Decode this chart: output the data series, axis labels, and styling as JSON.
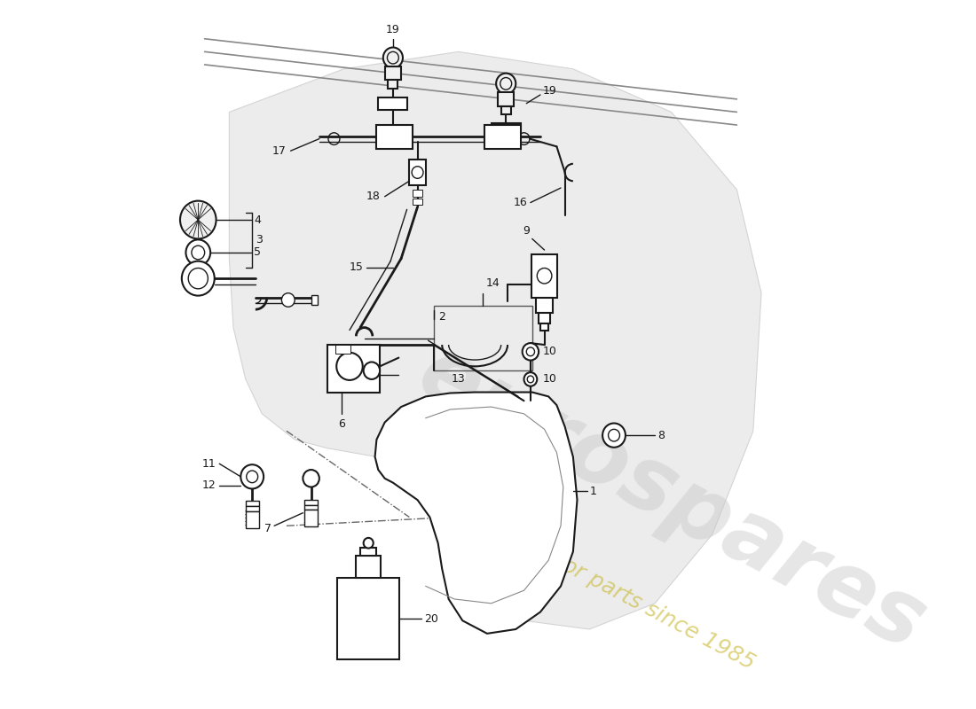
{
  "bg": "#ffffff",
  "lc": "#1a1a1a",
  "wm1": "eurospares",
  "wm2": "a passion for parts since 1985",
  "wm1_color": "#c8c8c8",
  "wm2_color": "#c8b830",
  "fig_w": 11.0,
  "fig_h": 8.0,
  "dpi": 100,
  "fender_color": "#e0e0e0",
  "hood_color": "#aaaaaa"
}
